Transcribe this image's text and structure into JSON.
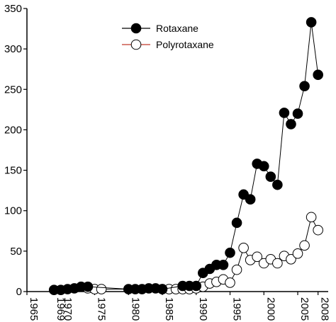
{
  "chart_data": {
    "type": "line",
    "title": "",
    "xlabel": "",
    "ylabel": "",
    "xlim": [
      1965,
      2009.5
    ],
    "ylim": [
      0,
      350
    ],
    "yticks": [
      0,
      50,
      100,
      150,
      200,
      250,
      300,
      350
    ],
    "xticks": [
      1965,
      1969,
      1970,
      1975,
      1980,
      1985,
      1990,
      1995,
      2000,
      2005,
      2008
    ],
    "grid": false,
    "legend_position": "top-center",
    "series": [
      {
        "name": "Rotaxane",
        "marker": "filled-circle",
        "color": "#000000",
        "x": [
          1969,
          1970,
          1971,
          1972,
          1973,
          1974,
          1980,
          1981,
          1982,
          1983,
          1984,
          1985,
          1988,
          1989,
          1990,
          1991,
          1992,
          1993,
          1994,
          1995,
          1996,
          1997,
          1998,
          1999,
          2000,
          2001,
          2002,
          2003,
          2004,
          2005,
          2006,
          2007,
          2008
        ],
        "y": [
          2,
          2,
          3,
          4,
          6,
          6,
          3,
          3,
          3,
          4,
          4,
          3,
          7,
          7,
          7,
          23,
          28,
          33,
          33,
          48,
          85,
          120,
          114,
          158,
          155,
          142,
          132,
          221,
          207,
          220,
          254,
          333,
          268
        ]
      },
      {
        "name": "Polyrotaxane",
        "marker": "open-circle",
        "color": "#000000",
        "line_color": "#c0392b",
        "x": [
          1974,
          1975,
          1976,
          1985,
          1986,
          1987,
          1988,
          1989,
          1990,
          1991,
          1992,
          1993,
          1994,
          1995,
          1996,
          1997,
          1998,
          1999,
          2000,
          2001,
          2002,
          2003,
          2004,
          2005,
          2006,
          2007,
          2008
        ],
        "y": [
          4,
          3,
          3,
          3,
          3,
          3,
          3,
          3,
          4,
          6,
          10,
          12,
          15,
          11,
          27,
          54,
          39,
          43,
          35,
          40,
          35,
          44,
          40,
          47,
          57,
          92,
          76
        ]
      }
    ]
  }
}
